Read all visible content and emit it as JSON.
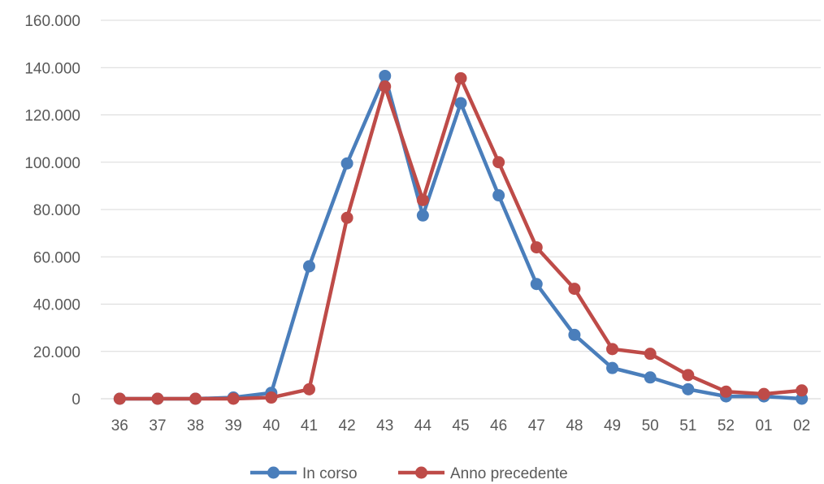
{
  "chart_data": {
    "type": "line",
    "title": "",
    "xlabel": "",
    "ylabel": "",
    "categories": [
      "36",
      "37",
      "38",
      "39",
      "40",
      "41",
      "42",
      "43",
      "44",
      "45",
      "46",
      "47",
      "48",
      "49",
      "50",
      "51",
      "52",
      "01",
      "02"
    ],
    "y_ticks": [
      "0",
      "20.000",
      "40.000",
      "60.000",
      "80.000",
      "100.000",
      "120.000",
      "140.000",
      "160.000"
    ],
    "ylim": [
      0,
      160000
    ],
    "grid": true,
    "legend_position": "bottom",
    "series": [
      {
        "name": "In corso",
        "color": "#4a7ebb",
        "values": [
          0,
          0,
          0,
          500,
          2500,
          56000,
          99500,
          136500,
          77500,
          125000,
          86000,
          48500,
          27000,
          13000,
          9000,
          4000,
          1000,
          1000,
          0
        ]
      },
      {
        "name": "Anno precedente",
        "color": "#be4b48",
        "values": [
          0,
          0,
          0,
          0,
          500,
          4000,
          76500,
          132000,
          84000,
          135500,
          100000,
          64000,
          46500,
          21000,
          19000,
          10000,
          3000,
          2000,
          3500
        ]
      }
    ]
  }
}
